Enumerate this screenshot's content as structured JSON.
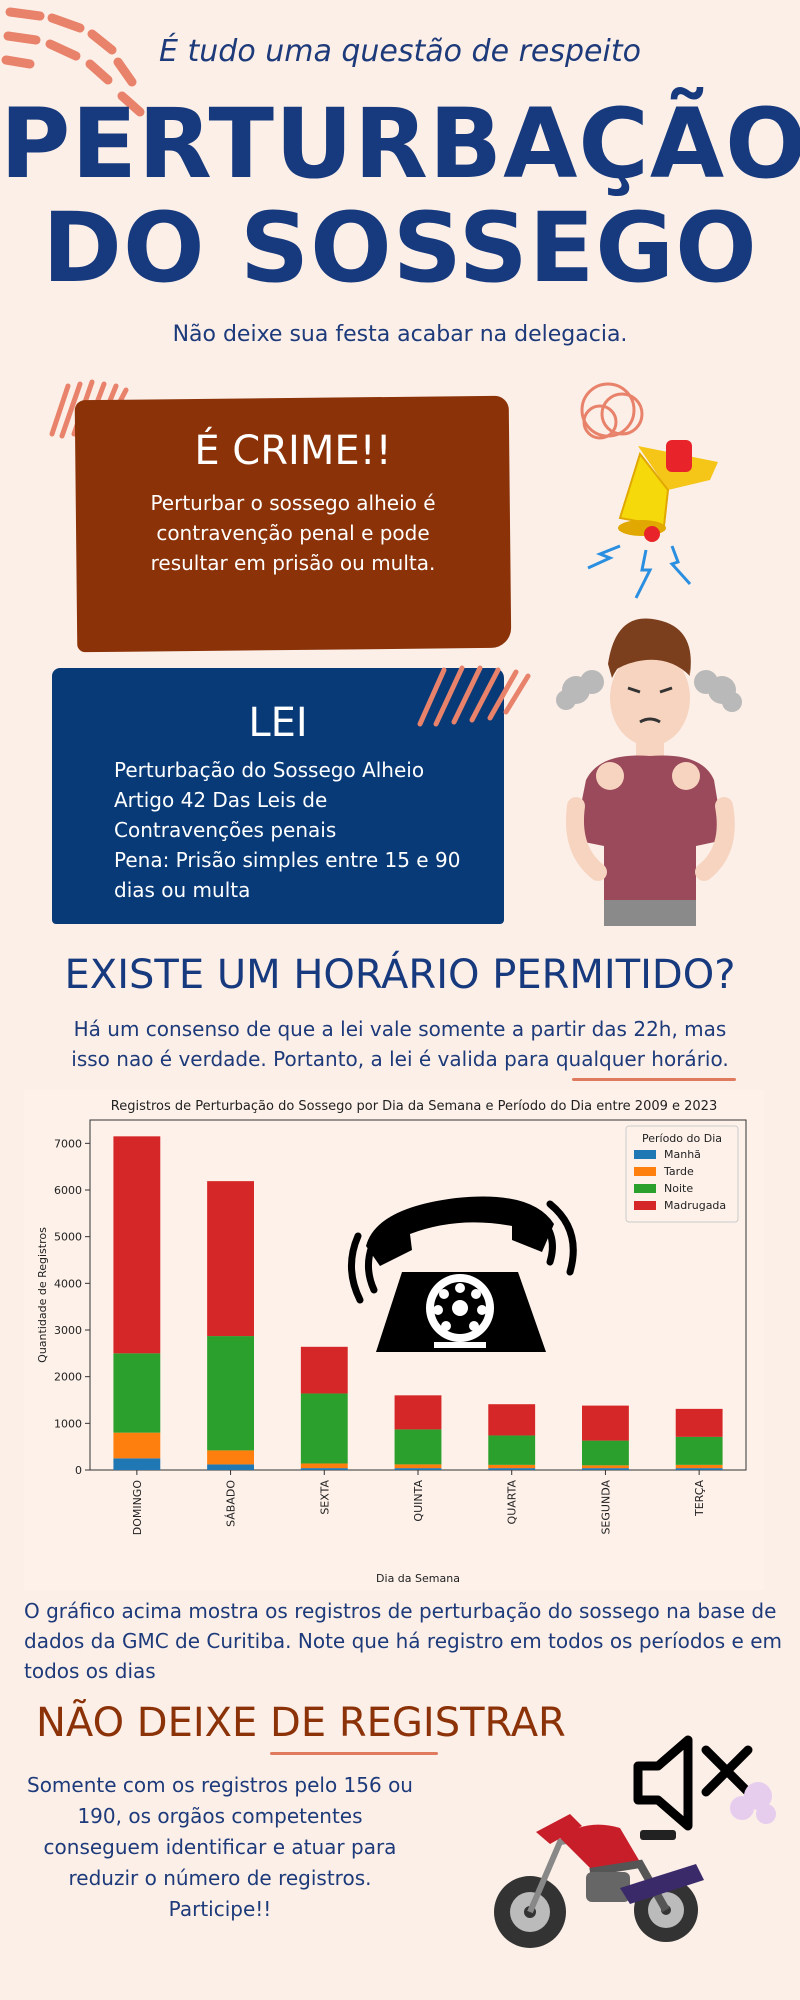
{
  "header": {
    "kicker": "É tudo uma questão de respeito",
    "title_line1": "PERTURBAÇÃO",
    "title_line2": "DO SOSSEGO",
    "subtitle": "Não deixe sua festa acabar na delegacia."
  },
  "crime": {
    "title": "É CRIME!!",
    "text": "Perturbar o sossego alheio é contravenção penal e pode resultar em prisão ou multa."
  },
  "lei": {
    "title": "LEI",
    "lines": [
      "Perturbação do Sossego Alheio",
      "Artigo 42 Das Leis de",
      "Contravenções penais",
      "Pena: Prisão simples entre 15 e 90",
      "dias ou multa"
    ]
  },
  "horario": {
    "title": "EXISTE UM HORÁRIO PERMITIDO?",
    "line1": "Há um consenso de que a lei vale somente a partir das 22h, mas",
    "line2": "isso nao é verdade. Portanto, a lei é valida para qualquer horário."
  },
  "chart_data": {
    "type": "bar",
    "stacked": true,
    "title": "Registros de Perturbação do Sossego por Dia da Semana e Período do Dia entre 2009 e 2023",
    "xlabel": "Dia da Semana",
    "ylabel": "Quantidade de Registros",
    "ylim": [
      0,
      7500
    ],
    "yticks": [
      0,
      1000,
      2000,
      3000,
      4000,
      5000,
      6000,
      7000
    ],
    "grid": false,
    "legend_title": "Período do Dia",
    "legend_position": "top-right",
    "categories": [
      "DOMINGO",
      "SÁBADO",
      "SEXTA",
      "QUINTA",
      "QUARTA",
      "SEGUNDA",
      "TERÇA"
    ],
    "series": [
      {
        "name": "Manhã",
        "color": "#1f77b4",
        "values": [
          250,
          120,
          40,
          40,
          40,
          40,
          40
        ]
      },
      {
        "name": "Tarde",
        "color": "#ff7f0e",
        "values": [
          550,
          300,
          100,
          80,
          70,
          60,
          70
        ]
      },
      {
        "name": "Noite",
        "color": "#2ca02c",
        "values": [
          1700,
          2450,
          1500,
          750,
          630,
          530,
          600
        ]
      },
      {
        "name": "Madrugada",
        "color": "#d62728",
        "values": [
          4650,
          3320,
          1000,
          730,
          670,
          750,
          600
        ]
      }
    ]
  },
  "grafico_text": "O gráfico acima mostra os registros de perturbação do sossego na base de dados da GMC de Curitiba. Note que há registro em todos os períodos e em todos os dias",
  "registrar": {
    "title": "NÃO DEIXE DE REGISTRAR",
    "text": "Somente com os registros pelo 156 ou 190, os orgãos competentes conseguem identificar e atuar para reduzir o número de registros. Participe!!"
  },
  "colors": {
    "navy": "#173a7e",
    "brown": "#8b3208",
    "background": "#fcefe8",
    "accent": "#e07a5f"
  }
}
